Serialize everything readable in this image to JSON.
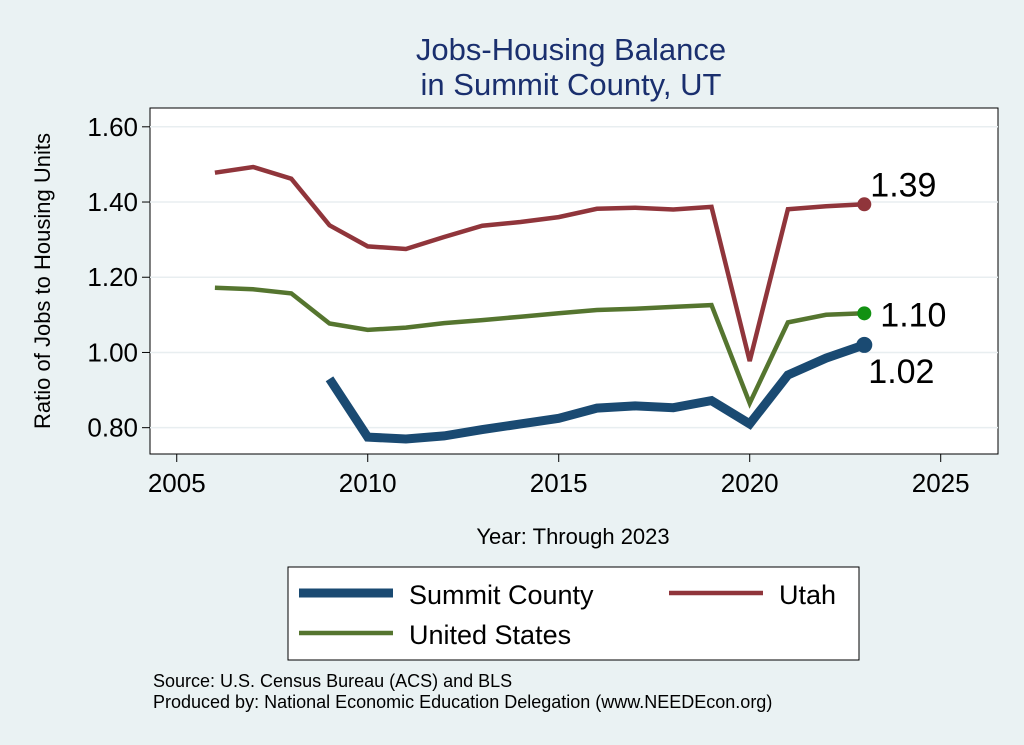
{
  "chart_data": {
    "type": "line",
    "title": [
      "Jobs-Housing Balance",
      "in Summit County, UT"
    ],
    "xlabel": "Year: Through 2023",
    "ylabel": "Ratio of Jobs to Housing Units",
    "xlim": [
      2004.3,
      2026.5
    ],
    "ylim": [
      0.73,
      1.65
    ],
    "x_ticks": [
      2005,
      2010,
      2015,
      2020,
      2025
    ],
    "y_ticks": [
      0.8,
      1.0,
      1.2,
      1.4,
      1.6
    ],
    "y_tick_labels": [
      "0.80",
      "1.00",
      "1.20",
      "1.40",
      "1.60"
    ],
    "grid": true,
    "legend_position": "bottom",
    "series": [
      {
        "name": "Summit County",
        "color": "#1a4a72",
        "line_weight": "thick",
        "x": [
          2009,
          2010,
          2011,
          2012,
          2013,
          2014,
          2015,
          2016,
          2017,
          2018,
          2019,
          2020,
          2021,
          2022,
          2023
        ],
        "values": [
          0.93,
          0.775,
          0.77,
          0.778,
          0.795,
          0.81,
          0.825,
          0.852,
          0.858,
          0.853,
          0.872,
          0.81,
          0.94,
          0.985,
          1.02
        ],
        "end_label": "1.02",
        "end_marker_color": "#1a4a72"
      },
      {
        "name": "Utah",
        "color": "#90353b",
        "line_weight": "normal",
        "x": [
          2006,
          2007,
          2008,
          2009,
          2010,
          2011,
          2012,
          2013,
          2014,
          2015,
          2016,
          2017,
          2018,
          2019,
          2020,
          2021,
          2022,
          2023
        ],
        "values": [
          1.478,
          1.493,
          1.462,
          1.338,
          1.282,
          1.275,
          1.307,
          1.337,
          1.347,
          1.36,
          1.382,
          1.385,
          1.38,
          1.387,
          0.977,
          1.381,
          1.389,
          1.394
        ],
        "end_label": "1.39",
        "end_marker_color": "#90353b"
      },
      {
        "name": "United States",
        "color": "#55752f",
        "line_weight": "normal",
        "x": [
          2006,
          2007,
          2008,
          2009,
          2010,
          2011,
          2012,
          2013,
          2014,
          2015,
          2016,
          2017,
          2018,
          2019,
          2020,
          2021,
          2022,
          2023
        ],
        "values": [
          1.172,
          1.168,
          1.157,
          1.077,
          1.06,
          1.066,
          1.078,
          1.086,
          1.095,
          1.104,
          1.113,
          1.116,
          1.121,
          1.126,
          0.865,
          1.08,
          1.1,
          1.104
        ],
        "end_label": "1.10",
        "end_marker_color": "#129112"
      }
    ]
  },
  "footer": {
    "source": "Source: U.S. Census Bureau (ACS) and BLS",
    "produced_by": "Produced by: National Economic Education Delegation (www.NEEDEcon.org)"
  }
}
